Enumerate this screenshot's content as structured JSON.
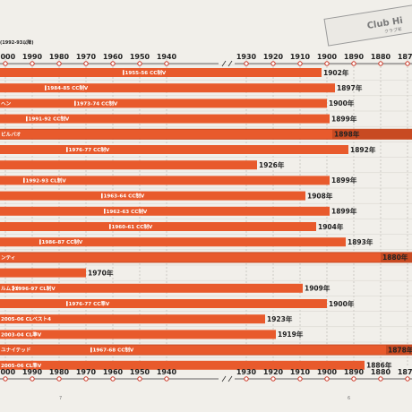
{
  "header": {
    "subtitle_fragment": "(1992-93以降)"
  },
  "stamp": {
    "title_fragment": "Club Hi",
    "subtitle_fragment": "クラブ年"
  },
  "page_numbers": [
    "7",
    "6"
  ],
  "chart_data": {
    "type": "bar",
    "x_axis": {
      "reversed": true,
      "broken": true,
      "tick_labels": [
        "2000",
        "1990",
        "1980",
        "1970",
        "1960",
        "1950",
        "1940",
        "1930",
        "1920",
        "1910",
        "1900",
        "1890",
        "1880",
        "1870"
      ],
      "tick_values": [
        2000,
        1990,
        1980,
        1970,
        1960,
        1950,
        1940,
        1930,
        1920,
        1910,
        1900,
        1890,
        1880,
        1870
      ],
      "break_between": [
        1940,
        1930
      ]
    },
    "grid": true,
    "colors": {
      "bar": "#e85a2c",
      "group_band": "#c84a22",
      "tick_dot": "#cc3322",
      "axis": "#333333"
    },
    "rows": [
      {
        "row_label": "",
        "founding_year": 1902,
        "year_label": "1902年",
        "achievements": [
          {
            "season": 1955,
            "label": "1955-56 CC制V"
          }
        ],
        "group_band": false
      },
      {
        "row_label": "",
        "founding_year": 1897,
        "year_label": "1897年",
        "achievements": [
          {
            "season": 1984,
            "label": "1984-85 CC制V"
          }
        ],
        "group_band": false
      },
      {
        "row_label": "ヘン",
        "founding_year": 1900,
        "year_label": "1900年",
        "achievements": [
          {
            "season": 1973,
            "label": "1973-74 CC制V"
          }
        ],
        "group_band": false
      },
      {
        "row_label": "",
        "founding_year": 1899,
        "year_label": "1899年",
        "achievements": [
          {
            "season": 1991,
            "label": "1991-92 CC制V"
          }
        ],
        "group_band": false
      },
      {
        "row_label": "ビルバオ",
        "founding_year": 1898,
        "year_label": "1898年",
        "achievements": [],
        "group_band": true
      },
      {
        "row_label": "",
        "founding_year": 1892,
        "year_label": "1892年",
        "achievements": [
          {
            "season": 1976,
            "label": "1976-77 CC制V"
          }
        ],
        "group_band": false
      },
      {
        "row_label": "",
        "founding_year": 1926,
        "year_label": "1926年",
        "achievements": [],
        "group_band": false
      },
      {
        "row_label": "",
        "founding_year": 1899,
        "year_label": "1899年",
        "achievements": [
          {
            "season": 1992,
            "label": "1992-93 CL制V"
          }
        ],
        "group_band": false
      },
      {
        "row_label": "",
        "founding_year": 1908,
        "year_label": "1908年",
        "achievements": [
          {
            "season": 1963,
            "label": "1963-64 CC制V"
          }
        ],
        "group_band": false
      },
      {
        "row_label": "",
        "founding_year": 1899,
        "year_label": "1899年",
        "achievements": [
          {
            "season": 1962,
            "label": "1962-63 CC制V"
          }
        ],
        "group_band": false
      },
      {
        "row_label": "",
        "founding_year": 1904,
        "year_label": "1904年",
        "achievements": [
          {
            "season": 1960,
            "label": "1960-61 CC制V"
          }
        ],
        "group_band": false
      },
      {
        "row_label": "",
        "founding_year": 1893,
        "year_label": "1893年",
        "achievements": [
          {
            "season": 1986,
            "label": "1986-87 CC制V"
          }
        ],
        "group_band": false
      },
      {
        "row_label": "ンティ",
        "founding_year": 1880,
        "year_label": "1880年",
        "achievements": [],
        "group_band": true
      },
      {
        "row_label": "",
        "founding_year": 1970,
        "year_label": "1970年",
        "achievements": [],
        "group_band": false
      },
      {
        "row_label": "ルムント",
        "founding_year": 1909,
        "year_label": "1909年",
        "achievements": [
          {
            "season": 1996,
            "label": "1996-97 CL制V"
          }
        ],
        "group_band": false
      },
      {
        "row_label": "",
        "founding_year": 1900,
        "year_label": "1900年",
        "achievements": [
          {
            "season": 1976,
            "label": "1976-77 CC準V"
          }
        ],
        "group_band": false
      },
      {
        "row_label": "2005-06 CLベスト4",
        "founding_year": 1923,
        "year_label": "1923年",
        "achievements": [],
        "group_band": false
      },
      {
        "row_label": "2003-04 CL準V",
        "founding_year": 1919,
        "year_label": "1919年",
        "achievements": [],
        "group_band": false
      },
      {
        "row_label": "ユナイテッド",
        "founding_year": 1878,
        "year_label": "1878年",
        "achievements": [
          {
            "season": 1967,
            "label": "1967-68 CC制V"
          }
        ],
        "group_band": true
      },
      {
        "row_label": "2005-06 CL準V",
        "founding_year": 1886,
        "year_label": "1886年",
        "achievements": [],
        "group_band": false
      }
    ]
  }
}
